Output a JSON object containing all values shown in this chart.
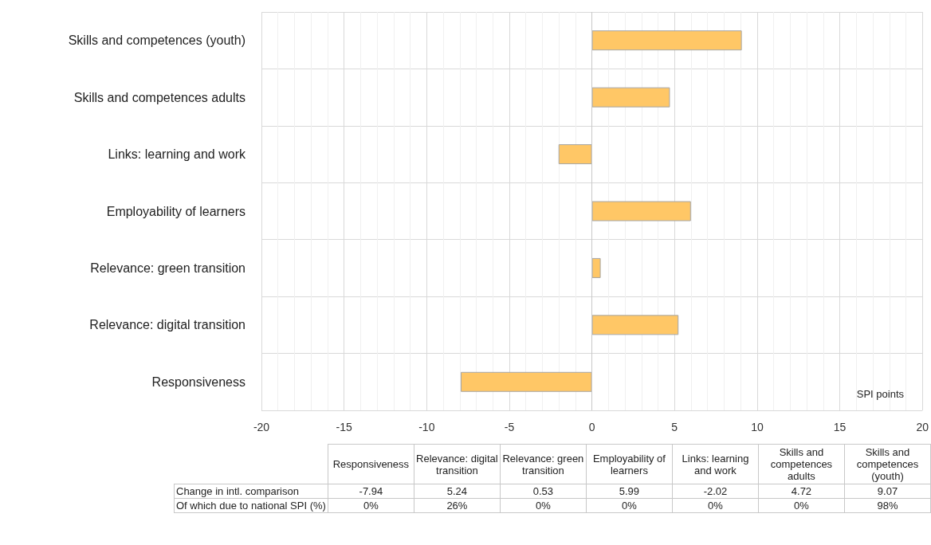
{
  "chart_data": {
    "type": "bar",
    "orientation": "horizontal",
    "xlabel": "SPI points",
    "categories": [
      "Skills and competences (youth)",
      "Skills and competences adults",
      "Links: learning and work",
      "Employability of learners",
      "Relevance: green transition",
      "Relevance: digital transition",
      "Responsiveness"
    ],
    "series": [
      {
        "color": "#ffc766",
        "values": [
          9.07,
          4.72,
          -2.02,
          5.99,
          0.53,
          5.24,
          -7.94
        ]
      }
    ],
    "xlim": [
      -20,
      20
    ],
    "xticks": [
      -20,
      -15,
      -10,
      -5,
      0,
      5,
      10,
      15,
      20
    ],
    "grid": true,
    "annotations": [
      "Change in intl. comparison",
      "-7.94",
      "5.24",
      "0.53",
      "5.99",
      "-2.02",
      "4.72",
      "9.07",
      "Of which due to national SPI (%)",
      "0%",
      "26%",
      "0%",
      "0%",
      "0%",
      "0%",
      "98%"
    ]
  }
}
